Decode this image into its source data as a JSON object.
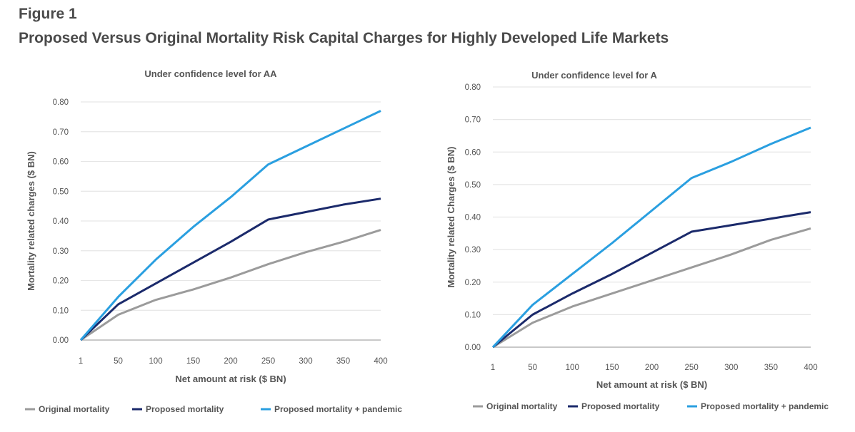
{
  "figure_label": "Figure 1",
  "figure_title": "Proposed Versus Original Mortality Risk Capital Charges for Highly Developed Life Markets",
  "chart_data": [
    {
      "type": "line",
      "title": "Under confidence level for AA",
      "xlabel": "Net amount at risk ($ BN)",
      "ylabel": "Mortality related charges ($ BN)",
      "categories": [
        "1",
        "50",
        "100",
        "150",
        "200",
        "250",
        "300",
        "350",
        "400"
      ],
      "ylim": [
        0,
        0.8
      ],
      "yticks": [
        "0.00",
        "0.10",
        "0.20",
        "0.30",
        "0.40",
        "0.50",
        "0.60",
        "0.70",
        "0.80"
      ],
      "grid": true,
      "legend": "bottom",
      "series": [
        {
          "name": "Original mortality",
          "color": "#9b9b9b",
          "values": [
            0,
            0.085,
            0.135,
            0.17,
            0.21,
            0.255,
            0.295,
            0.33,
            0.37
          ]
        },
        {
          "name": "Proposed mortality",
          "color": "#1b2a6b",
          "values": [
            0,
            0.12,
            0.19,
            0.26,
            0.33,
            0.405,
            0.43,
            0.455,
            0.475
          ]
        },
        {
          "name": "Proposed mortality + pandemic",
          "color": "#2a9fe0",
          "values": [
            0,
            0.145,
            0.27,
            0.38,
            0.48,
            0.59,
            0.65,
            0.71,
            0.77
          ]
        }
      ]
    },
    {
      "type": "line",
      "title": "Under confidence level for A",
      "xlabel": "Net amount at risk ($ BN)",
      "ylabel": "Mortality related Charges ($ BN)",
      "categories": [
        "1",
        "50",
        "100",
        "150",
        "200",
        "250",
        "300",
        "350",
        "400"
      ],
      "ylim": [
        0,
        0.8
      ],
      "yticks": [
        "0.00",
        "0.10",
        "0.20",
        "0.30",
        "0.40",
        "0.50",
        "0.60",
        "0.70",
        "0.80"
      ],
      "grid": true,
      "legend": "bottom",
      "series": [
        {
          "name": "Original mortality",
          "color": "#9b9b9b",
          "values": [
            0,
            0.075,
            0.125,
            0.165,
            0.205,
            0.245,
            0.285,
            0.33,
            0.365
          ]
        },
        {
          "name": "Proposed mortality",
          "color": "#1b2a6b",
          "values": [
            0,
            0.1,
            0.165,
            0.225,
            0.29,
            0.355,
            0.375,
            0.395,
            0.415
          ]
        },
        {
          "name": "Proposed mortality + pandemic",
          "color": "#2a9fe0",
          "values": [
            0,
            0.13,
            0.225,
            0.32,
            0.42,
            0.52,
            0.57,
            0.625,
            0.675
          ]
        }
      ]
    }
  ]
}
